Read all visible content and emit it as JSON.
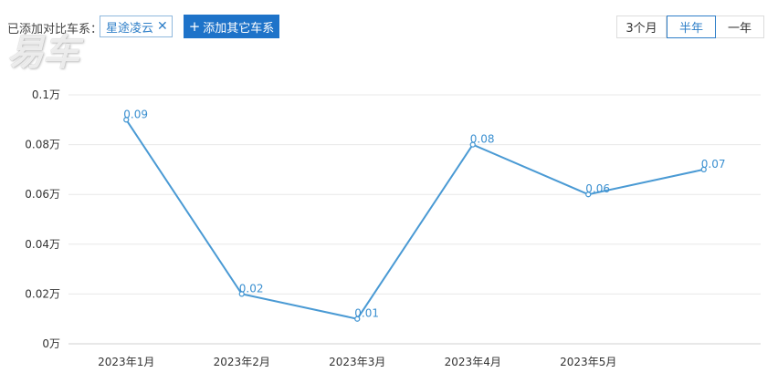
{
  "toolbar": {
    "added_label": "已添加对比车系：",
    "chip_label": "星途凌云",
    "chip_close_icon": "close-icon",
    "add_button_label": "添加其它车系",
    "add_button_icon": "plus-icon"
  },
  "watermark": "易车",
  "range_tabs": [
    {
      "label": "3个月",
      "active": false
    },
    {
      "label": "半年",
      "active": true
    },
    {
      "label": "一年",
      "active": false
    }
  ],
  "colors": {
    "accent": "#1e73c9",
    "line": "#4a9ad4",
    "grid": "#e8e8e8",
    "label": "#3a8fd0"
  },
  "chart_data": {
    "type": "line",
    "categories": [
      "2023年1月",
      "2023年2月",
      "2023年3月",
      "2023年4月",
      "2023年5月",
      ""
    ],
    "series": [
      {
        "values": [
          0.09,
          0.02,
          0.01,
          0.08,
          0.06,
          0.07
        ],
        "data_labels": [
          "0.09",
          "0.02",
          "0.01",
          "0.08",
          "0.06",
          "0.07"
        ]
      }
    ],
    "y_ticks": [
      {
        "value": 0,
        "label": "0万"
      },
      {
        "value": 0.02,
        "label": "0.02万"
      },
      {
        "value": 0.04,
        "label": "0.04万"
      },
      {
        "value": 0.06,
        "label": "0.06万"
      },
      {
        "value": 0.08,
        "label": "0.08万"
      },
      {
        "value": 0.1,
        "label": "0.1万"
      }
    ],
    "ylim": [
      0,
      0.1
    ],
    "grid": true,
    "legend": "none"
  }
}
